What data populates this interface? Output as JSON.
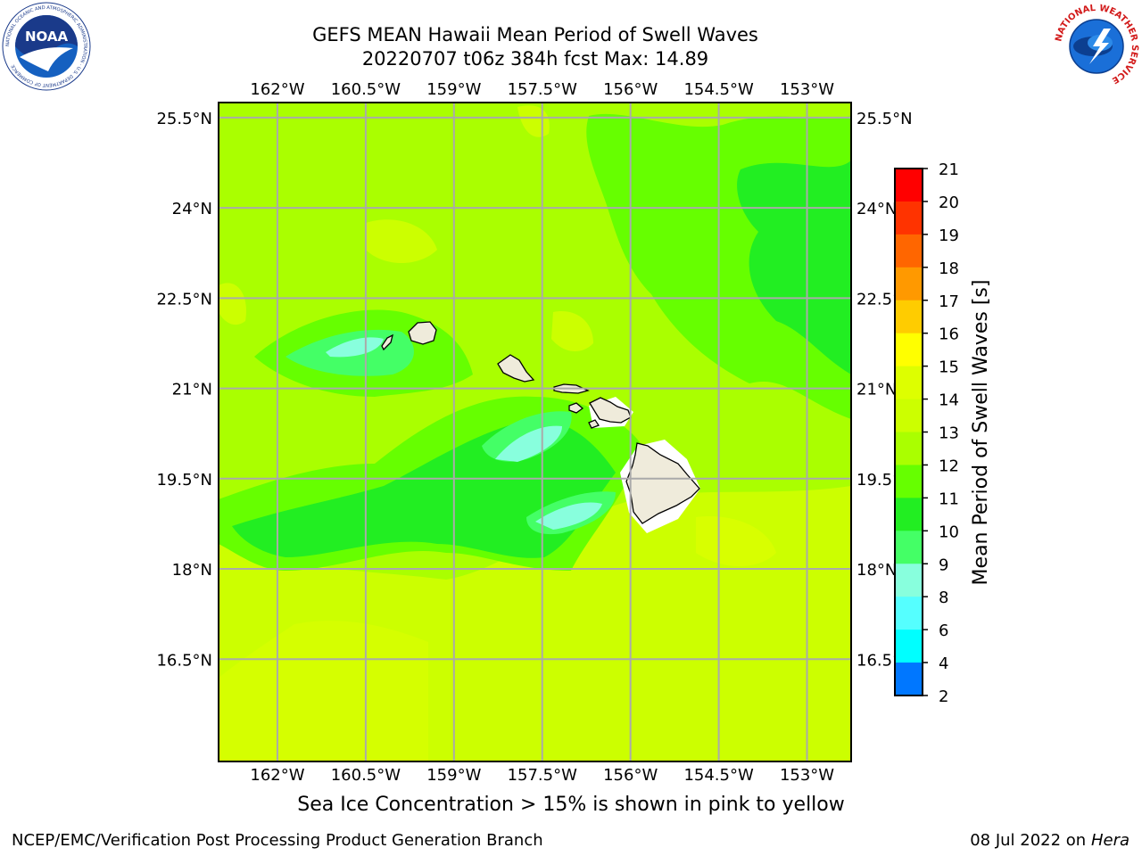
{
  "header": {
    "title_line1": "GEFS MEAN Hawaii Mean Period of Swell Waves",
    "title_line2": "20220707 t06z 384h fcst   Max: 14.89"
  },
  "map": {
    "lon_labels": [
      "162°W",
      "160.5°W",
      "159°W",
      "157.5°W",
      "156°W",
      "154.5°W",
      "153°W"
    ],
    "lat_labels": [
      "25.5°N",
      "24°N",
      "22.5°N",
      "21°N",
      "19.5°N",
      "18°N",
      "16.5°N"
    ],
    "lon_values": [
      -162,
      -160.5,
      -159,
      -157.5,
      -156,
      -154.5,
      -153
    ],
    "lat_values": [
      25.5,
      24,
      22.5,
      21,
      19.5,
      18,
      16.5
    ],
    "lon_range": [
      -163,
      -152.25
    ],
    "lat_range": [
      14.8,
      25.75
    ],
    "gridlines": true,
    "land_color": "#efebdb",
    "ocean_dominant_color": "#aaff00"
  },
  "colorbar": {
    "label": "Mean Period of Swell Waves [s]",
    "ticks": [
      "21",
      "20",
      "19",
      "18",
      "17",
      "16",
      "15",
      "14",
      "13",
      "12",
      "11",
      "10",
      "9",
      "8",
      "6",
      "4",
      "2"
    ],
    "colors": [
      "#ff0000",
      "#ff3300",
      "#ff6600",
      "#ff9900",
      "#ffcc00",
      "#ffff00",
      "#ddff00",
      "#ccff00",
      "#aaff00",
      "#66ff00",
      "#22ee22",
      "#44ff66",
      "#88ffdd",
      "#55ffff",
      "#00ffff",
      "#0077ff",
      "#0000ff"
    ]
  },
  "note": "Sea Ice Concentration > 15% is shown in pink to yellow",
  "footer": {
    "left": "NCEP/EMC/Verification Post Processing Product Generation Branch",
    "right_date": "08 Jul 2022 on ",
    "right_host": "Hera"
  },
  "logos": {
    "noaa_text": "NOAA",
    "noaa_ring": "NATIONAL OCEANIC AND ATMOSPHERIC ADMINISTRATION · U.S. DEPARTMENT OF COMMERCE",
    "nws_ring": "NATIONAL WEATHER SERVICE"
  }
}
